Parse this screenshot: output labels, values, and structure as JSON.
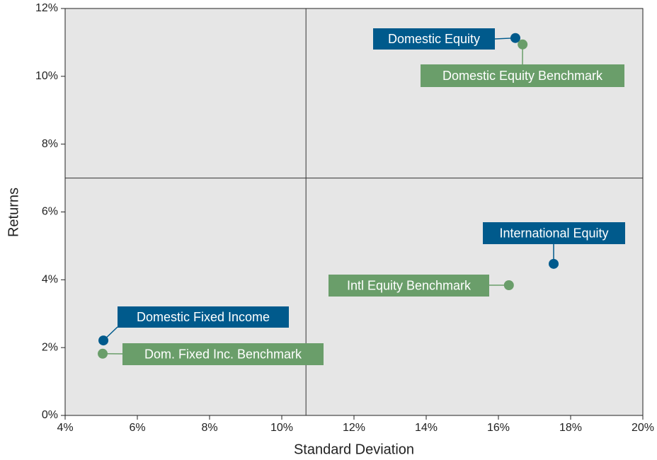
{
  "chart_data": {
    "type": "scatter",
    "xlabel": "Standard Deviation",
    "ylabel": "Returns",
    "xlim": [
      4,
      20
    ],
    "ylim": [
      0,
      12
    ],
    "xticks": [
      {
        "value": 4,
        "label": "4%"
      },
      {
        "value": 6,
        "label": "6%"
      },
      {
        "value": 8,
        "label": "8%"
      },
      {
        "value": 10,
        "label": "10%"
      },
      {
        "value": 12,
        "label": "12%"
      },
      {
        "value": 14,
        "label": "14%"
      },
      {
        "value": 16,
        "label": "16%"
      },
      {
        "value": 18,
        "label": "18%"
      },
      {
        "value": 20,
        "label": "20%"
      }
    ],
    "yticks": [
      {
        "value": 0,
        "label": "0%"
      },
      {
        "value": 2,
        "label": "2%"
      },
      {
        "value": 4,
        "label": "4%"
      },
      {
        "value": 6,
        "label": "6%"
      },
      {
        "value": 8,
        "label": "8%"
      },
      {
        "value": 10,
        "label": "10%"
      },
      {
        "value": 12,
        "label": "12%"
      }
    ],
    "reference_lines": {
      "x": 10.67,
      "y": 7
    },
    "points": [
      {
        "name": "Domestic Equity",
        "color": "#005a8c",
        "x": 16.47,
        "y": 11.13
      },
      {
        "name": "Domestic Equity Benchmark",
        "color": "#6a9e6a",
        "x": 16.67,
        "y": 10.94
      },
      {
        "name": "International Equity",
        "color": "#005a8c",
        "x": 17.53,
        "y": 4.47
      },
      {
        "name": "Intl Equity Benchmark",
        "color": "#6a9e6a",
        "x": 16.29,
        "y": 3.84
      },
      {
        "name": "Domestic Fixed Income",
        "color": "#005a8c",
        "x": 5.06,
        "y": 2.21
      },
      {
        "name": "Dom. Fixed Inc. Benchmark",
        "color": "#6a9e6a",
        "x": 5.04,
        "y": 1.82
      }
    ]
  }
}
